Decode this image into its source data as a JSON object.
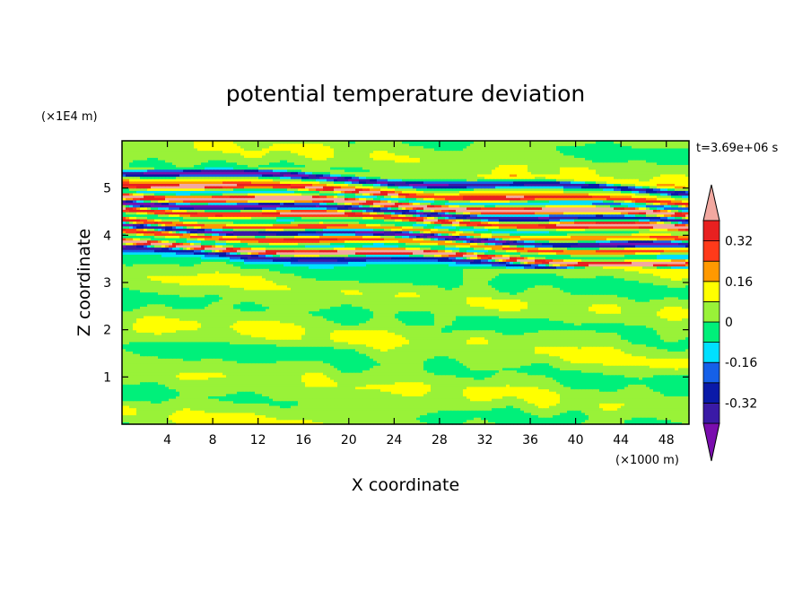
{
  "chart_data": {
    "type": "heatmap",
    "title": "potential temperature deviation",
    "xlabel": "X coordinate",
    "ylabel": "Z coordinate",
    "x_unit": "(×1000 m)",
    "y_unit": "(×1E4 m)",
    "time_label": "t=3.69e+06 s",
    "xlim": [
      0,
      50
    ],
    "ylim": [
      0,
      6
    ],
    "x_ticks": [
      "4",
      "8",
      "12",
      "16",
      "20",
      "24",
      "28",
      "32",
      "36",
      "40",
      "44",
      "48"
    ],
    "y_ticks": [
      "1",
      "2",
      "3",
      "4",
      "5"
    ],
    "colorbar": {
      "labels": [
        "0.32",
        "0.16",
        "0",
        "-0.16",
        "-0.32"
      ],
      "levels": [
        -0.4,
        -0.32,
        -0.24,
        -0.16,
        -0.08,
        0,
        0.08,
        0.16,
        0.24,
        0.32,
        0.4
      ],
      "colors": [
        "#7a0dae",
        "#3a1aa6",
        "#0a1aa8",
        "#1560e8",
        "#00e0ff",
        "#00f07a",
        "#99f238",
        "#ffff00",
        "#ff9900",
        "#ff3a1a",
        "#e82020",
        "#f2a8a0"
      ]
    },
    "field_description": "Layered anomalies: strong alternating positive/negative bands between z≈3.4 and 5.3 (×1E4 m); weak near-zero field elsewhere",
    "bands": [
      {
        "z": 5.3,
        "value": 0.08
      },
      {
        "z": 5.15,
        "value": -0.38
      },
      {
        "z": 5.0,
        "value": 0.1
      },
      {
        "z": 4.9,
        "value": 0.35
      },
      {
        "z": 4.78,
        "value": -0.2
      },
      {
        "z": 4.65,
        "value": 0.45
      },
      {
        "z": 4.5,
        "value": -0.45
      },
      {
        "z": 4.35,
        "value": 0.42
      },
      {
        "z": 4.22,
        "value": -0.05
      },
      {
        "z": 4.1,
        "value": 0.3
      },
      {
        "z": 3.98,
        "value": -0.42
      },
      {
        "z": 3.85,
        "value": 0.25
      },
      {
        "z": 3.72,
        "value": -0.18
      },
      {
        "z": 3.6,
        "value": 0.45
      },
      {
        "z": 3.48,
        "value": -0.38
      },
      {
        "z": 3.38,
        "value": -0.1
      }
    ]
  }
}
